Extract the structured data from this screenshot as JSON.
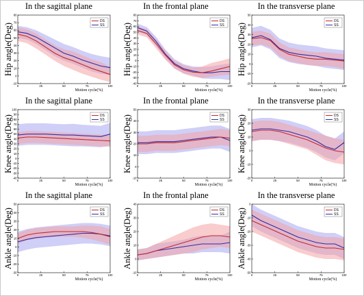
{
  "colors": {
    "ds": "#c0282d",
    "ss": "#2e2aa6",
    "ds_band": "#f4a3a5",
    "ss_band": "#a7a8f0"
  },
  "legend": [
    "DS",
    "SS"
  ],
  "x_label": "Motion cycle(%)",
  "chart_data": [
    {
      "type": "line",
      "title": "In the sagittal plane",
      "ylabel": "Hip angle(Deg)",
      "ylim": [
        -10,
        80
      ],
      "yticks": [
        -10,
        0,
        10,
        20,
        30,
        40,
        50,
        60,
        70,
        80
      ],
      "x_ticks": [
        0,
        25,
        50,
        75,
        100
      ],
      "series": [
        {
          "name": "DS",
          "x": [
            0,
            10,
            20,
            30,
            40,
            50,
            60,
            70,
            80,
            90,
            100
          ],
          "values": [
            55,
            52,
            46,
            38,
            30,
            24,
            20,
            15,
            10,
            6,
            2
          ],
          "lower": [
            46,
            43,
            36,
            28,
            20,
            13,
            8,
            3,
            -1,
            -5,
            -8
          ],
          "upper": [
            64,
            61,
            56,
            48,
            40,
            35,
            32,
            27,
            22,
            18,
            12
          ]
        },
        {
          "name": "SS",
          "x": [
            0,
            10,
            20,
            30,
            40,
            50,
            60,
            70,
            80,
            90,
            100
          ],
          "values": [
            58,
            56,
            51,
            44,
            37,
            30,
            26,
            21,
            17,
            13,
            11
          ],
          "lower": [
            50,
            48,
            42,
            34,
            26,
            20,
            16,
            11,
            6,
            3,
            1
          ],
          "upper": [
            66,
            64,
            60,
            54,
            48,
            42,
            38,
            33,
            29,
            26,
            24
          ]
        }
      ]
    },
    {
      "type": "line",
      "title": "In the frontal plane",
      "ylabel": "Hip angle(Deg)",
      "ylim": [
        -40,
        80
      ],
      "yticks": [
        -40,
        -30,
        -20,
        -10,
        0,
        10,
        20,
        30,
        40,
        50,
        60,
        70,
        80
      ],
      "x_ticks": [
        0,
        25,
        50,
        75,
        100
      ],
      "series": [
        {
          "name": "DS",
          "x": [
            0,
            10,
            20,
            30,
            40,
            50,
            60,
            70,
            80,
            90,
            100
          ],
          "values": [
            53,
            48,
            30,
            10,
            -7,
            -16,
            -20,
            -21,
            -18,
            -14,
            -10
          ],
          "lower": [
            46,
            41,
            22,
            2,
            -14,
            -23,
            -28,
            -30,
            -28,
            -26,
            -24
          ],
          "upper": [
            60,
            55,
            38,
            18,
            0,
            -8,
            -12,
            -10,
            -4,
            0,
            4
          ]
        },
        {
          "name": "SS",
          "x": [
            0,
            10,
            20,
            30,
            40,
            50,
            60,
            70,
            80,
            90,
            100
          ],
          "values": [
            58,
            52,
            34,
            12,
            -5,
            -14,
            -18,
            -21,
            -21,
            -19,
            -19
          ],
          "lower": [
            51,
            45,
            26,
            4,
            -13,
            -22,
            -26,
            -31,
            -32,
            -32,
            -34
          ],
          "upper": [
            65,
            59,
            42,
            20,
            3,
            -6,
            -10,
            -11,
            -10,
            -7,
            -5
          ]
        }
      ]
    },
    {
      "type": "line",
      "title": "In the transverse plane",
      "ylabel": "Hip angle(Deg)",
      "ylim": [
        -20,
        50
      ],
      "yticks": [
        -20,
        -10,
        0,
        10,
        20,
        30,
        40,
        50
      ],
      "x_ticks": [
        0,
        25,
        50,
        75,
        100
      ],
      "series": [
        {
          "name": "DS",
          "x": [
            0,
            10,
            20,
            30,
            40,
            50,
            60,
            70,
            80,
            90,
            100
          ],
          "values": [
            26,
            27,
            24,
            15,
            10,
            8,
            6,
            5,
            5,
            4,
            3
          ],
          "lower": [
            19,
            20,
            17,
            8,
            3,
            1,
            -1,
            -2,
            -2,
            -3,
            -5
          ],
          "upper": [
            33,
            34,
            31,
            22,
            17,
            15,
            13,
            12,
            12,
            11,
            10
          ]
        },
        {
          "name": "SS",
          "x": [
            0,
            10,
            20,
            30,
            40,
            50,
            60,
            70,
            80,
            90,
            100
          ],
          "values": [
            27,
            29,
            25,
            16,
            12,
            10,
            9,
            8,
            6,
            5,
            4
          ],
          "lower": [
            17,
            19,
            15,
            6,
            2,
            0,
            -1,
            -2,
            -4,
            -5,
            -6
          ],
          "upper": [
            37,
            39,
            35,
            26,
            22,
            20,
            19,
            18,
            16,
            15,
            14
          ]
        }
      ]
    },
    {
      "type": "line",
      "title": "In the sagittal plane",
      "ylabel": "Knee angle(Deg)",
      "ylim": [
        -40,
        100
      ],
      "yticks": [
        -40,
        -30,
        -20,
        -10,
        0,
        10,
        20,
        30,
        40,
        50,
        60,
        70,
        80,
        90,
        100
      ],
      "x_ticks": [
        0,
        25,
        50,
        75,
        100
      ],
      "series": [
        {
          "name": "DS",
          "x": [
            0,
            10,
            20,
            30,
            40,
            50,
            60,
            70,
            80,
            90,
            100
          ],
          "values": [
            42,
            44,
            44,
            43,
            42,
            41,
            40,
            39,
            38,
            37,
            36
          ],
          "lower": [
            30,
            32,
            32,
            31,
            30,
            29,
            28,
            27,
            26,
            25,
            24
          ],
          "upper": [
            54,
            56,
            56,
            55,
            54,
            53,
            52,
            51,
            50,
            49,
            48
          ]
        },
        {
          "name": "SS",
          "x": [
            0,
            10,
            20,
            30,
            40,
            50,
            60,
            70,
            80,
            90,
            100
          ],
          "values": [
            48,
            50,
            50,
            50,
            49,
            48,
            48,
            47,
            46,
            45,
            50
          ],
          "lower": [
            26,
            28,
            28,
            28,
            27,
            26,
            25,
            25,
            24,
            23,
            27
          ],
          "upper": [
            70,
            72,
            72,
            72,
            71,
            70,
            71,
            69,
            68,
            67,
            73
          ]
        }
      ]
    },
    {
      "type": "line",
      "title": "In the frontal plane",
      "ylabel": "Knee angle(Deg)",
      "ylim": [
        -10,
        50
      ],
      "yticks": [
        -10,
        0,
        10,
        20,
        30,
        40,
        50
      ],
      "x_ticks": [
        0,
        25,
        50,
        75,
        100
      ],
      "series": [
        {
          "name": "DS",
          "x": [
            0,
            10,
            20,
            30,
            40,
            50,
            60,
            70,
            80,
            90,
            100
          ],
          "values": [
            20,
            20,
            21,
            21,
            21,
            22,
            23,
            24,
            25,
            26,
            25
          ],
          "lower": [
            13,
            13,
            14,
            14,
            14,
            15,
            16,
            17,
            18,
            19,
            18
          ],
          "upper": [
            27,
            27,
            28,
            28,
            28,
            29,
            30,
            31,
            32,
            33,
            32
          ]
        },
        {
          "name": "SS",
          "x": [
            0,
            10,
            20,
            30,
            40,
            50,
            60,
            70,
            80,
            90,
            100
          ],
          "values": [
            21,
            21,
            22,
            22,
            22,
            23,
            24,
            25,
            26,
            26,
            23
          ],
          "lower": [
            11,
            11,
            12,
            12,
            12,
            13,
            14,
            15,
            16,
            16,
            13
          ],
          "upper": [
            31,
            31,
            32,
            32,
            32,
            33,
            34,
            35,
            36,
            36,
            33
          ]
        }
      ]
    },
    {
      "type": "line",
      "title": "In the transverse plane",
      "ylabel": "Knee angle(Deg)",
      "ylim": [
        -20,
        30
      ],
      "yticks": [
        -20,
        -10,
        0,
        10,
        20,
        30
      ],
      "x_ticks": [
        0,
        25,
        50,
        75,
        100
      ],
      "series": [
        {
          "name": "DS",
          "x": [
            0,
            10,
            20,
            30,
            40,
            50,
            60,
            70,
            80,
            90,
            100
          ],
          "values": [
            14,
            15,
            15,
            14,
            12,
            10,
            8,
            5,
            2,
            0,
            -1
          ],
          "lower": [
            7,
            8,
            8,
            7,
            5,
            3,
            1,
            -3,
            -7,
            -9,
            -10
          ],
          "upper": [
            21,
            22,
            22,
            21,
            19,
            17,
            15,
            13,
            11,
            9,
            8
          ]
        },
        {
          "name": "SS",
          "x": [
            0,
            10,
            20,
            30,
            40,
            50,
            60,
            70,
            80,
            90,
            100
          ],
          "values": [
            15,
            16,
            16,
            15,
            14,
            12,
            10,
            7,
            3,
            1,
            6
          ],
          "lower": [
            7,
            8,
            8,
            7,
            6,
            4,
            2,
            -1,
            -5,
            -7,
            -2
          ],
          "upper": [
            23,
            24,
            24,
            23,
            22,
            20,
            18,
            15,
            11,
            9,
            14
          ]
        }
      ]
    },
    {
      "type": "line",
      "title": "In the sagittal plane",
      "ylabel": "Ankle angle(Deg)",
      "ylim": [
        -30,
        50
      ],
      "yticks": [
        -30,
        -20,
        -10,
        0,
        10,
        20,
        30,
        40,
        50
      ],
      "x_ticks": [
        0,
        25,
        50,
        75,
        100
      ],
      "series": [
        {
          "name": "DS",
          "x": [
            0,
            10,
            20,
            30,
            40,
            50,
            60,
            70,
            80,
            90,
            100
          ],
          "values": [
            10,
            14,
            16,
            17,
            18,
            18,
            18,
            18,
            17,
            15,
            12
          ],
          "lower": [
            4,
            8,
            10,
            11,
            12,
            12,
            12,
            11,
            9,
            6,
            3
          ],
          "upper": [
            16,
            20,
            22,
            23,
            24,
            24,
            24,
            25,
            25,
            24,
            21
          ]
        },
        {
          "name": "SS",
          "x": [
            0,
            10,
            20,
            30,
            40,
            50,
            60,
            70,
            80,
            90,
            100
          ],
          "values": [
            6,
            9,
            11,
            12,
            13,
            14,
            15,
            16,
            16,
            15,
            13
          ],
          "lower": [
            -6,
            -3,
            -1,
            0,
            1,
            2,
            3,
            4,
            4,
            3,
            1
          ],
          "upper": [
            18,
            21,
            23,
            24,
            25,
            26,
            27,
            28,
            28,
            27,
            25
          ]
        }
      ]
    },
    {
      "type": "line",
      "title": "In the frontal plane",
      "ylabel": "Ankle angle(Deg)",
      "ylim": [
        -10,
        40
      ],
      "yticks": [
        -10,
        0,
        10,
        20,
        30,
        40
      ],
      "x_ticks": [
        0,
        25,
        50,
        75,
        100
      ],
      "series": [
        {
          "name": "DS",
          "x": [
            0,
            10,
            20,
            30,
            40,
            50,
            60,
            70,
            80,
            90,
            100
          ],
          "values": [
            3,
            4,
            6,
            8,
            10,
            12,
            14,
            16,
            17,
            17,
            16
          ],
          "lower": [
            -1,
            0,
            1,
            2,
            3,
            4,
            5,
            7,
            8,
            9,
            8
          ],
          "upper": [
            7,
            8,
            11,
            14,
            17,
            20,
            23,
            25,
            26,
            25,
            24
          ]
        },
        {
          "name": "SS",
          "x": [
            0,
            10,
            20,
            30,
            40,
            50,
            60,
            70,
            80,
            90,
            100
          ],
          "values": [
            3,
            4,
            6,
            7,
            8,
            9,
            10,
            11,
            11,
            11,
            12
          ],
          "lower": [
            -1,
            0,
            1,
            2,
            3,
            4,
            4,
            5,
            5,
            5,
            4
          ],
          "upper": [
            7,
            8,
            11,
            12,
            13,
            14,
            16,
            17,
            17,
            17,
            20
          ]
        }
      ]
    },
    {
      "type": "line",
      "title": "In the transverse plane",
      "ylabel": "Ankle angle(Deg)",
      "ylim": [
        -50,
        0
      ],
      "yticks": [
        -50,
        -40,
        -30,
        -20,
        -10,
        0
      ],
      "x_ticks": [
        0,
        25,
        50,
        75,
        100
      ],
      "series": [
        {
          "name": "DS",
          "x": [
            0,
            10,
            20,
            30,
            40,
            50,
            60,
            70,
            80,
            90,
            100
          ],
          "values": [
            -12,
            -15,
            -18,
            -21,
            -24,
            -27,
            -29,
            -31,
            -32,
            -32,
            -33
          ],
          "lower": [
            -20,
            -23,
            -26,
            -29,
            -32,
            -35,
            -37,
            -39,
            -40,
            -40,
            -41
          ],
          "upper": [
            -4,
            -7,
            -10,
            -13,
            -16,
            -19,
            -21,
            -23,
            -24,
            -24,
            -25
          ]
        },
        {
          "name": "SS",
          "x": [
            0,
            10,
            20,
            30,
            40,
            50,
            60,
            70,
            80,
            90,
            100
          ],
          "values": [
            -8,
            -12,
            -15,
            -18,
            -21,
            -24,
            -26,
            -28,
            -29,
            -29,
            -32
          ],
          "lower": [
            -16,
            -20,
            -23,
            -26,
            -29,
            -32,
            -34,
            -36,
            -37,
            -37,
            -40
          ],
          "upper": [
            0,
            -4,
            -7,
            -10,
            -13,
            -16,
            -18,
            -20,
            -21,
            -21,
            -24
          ]
        }
      ]
    }
  ]
}
